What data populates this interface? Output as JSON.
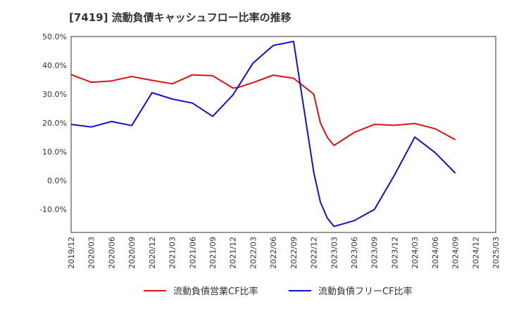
{
  "chart_data": {
    "type": "line",
    "title": "[7419]  流動負債キャッシュフロー比率の推移",
    "xlabel": "",
    "ylabel": "",
    "ylim": [
      -18,
      50
    ],
    "y_ticks": [
      "50.0%",
      "40.0%",
      "30.0%",
      "20.0%",
      "10.0%",
      "0.0%",
      "-10.0%"
    ],
    "y_tick_values": [
      50,
      40,
      30,
      20,
      10,
      0,
      -10
    ],
    "categories": [
      "2019/12",
      "2020/03",
      "2020/06",
      "2020/09",
      "2020/12",
      "2021/03",
      "2021/06",
      "2021/09",
      "2021/12",
      "2022/03",
      "2022/06",
      "2022/09",
      "2022/12",
      "2023/03",
      "2023/06",
      "2023/09",
      "2023/12",
      "2024/03",
      "2024/06",
      "2024/09",
      "2024/12",
      "2025/03"
    ],
    "grid": true,
    "legend_position": "bottom",
    "series": [
      {
        "name": "流動負債営業CF比率",
        "color": "#dd1111",
        "points": [
          [
            0,
            36.8
          ],
          [
            1,
            34.1
          ],
          [
            2,
            34.6
          ],
          [
            3,
            36.1
          ],
          [
            4,
            34.8
          ],
          [
            5,
            33.6
          ],
          [
            6,
            36.7
          ],
          [
            7,
            36.4
          ],
          [
            8,
            32.1
          ],
          [
            8.25,
            32.3
          ],
          [
            9,
            34.0
          ],
          [
            10,
            36.6
          ],
          [
            11,
            35.5
          ],
          [
            12,
            30.0
          ],
          [
            12.33,
            20.0
          ],
          [
            12.67,
            15.0
          ],
          [
            13,
            12.2
          ],
          [
            14,
            16.7
          ],
          [
            15,
            19.5
          ],
          [
            16,
            19.2
          ],
          [
            17,
            19.8
          ],
          [
            18,
            18.0
          ],
          [
            19,
            14.2
          ]
        ]
      },
      {
        "name": "流動負債フリーCF比率",
        "color": "#1111cc",
        "points": [
          [
            0,
            19.5
          ],
          [
            1,
            18.6
          ],
          [
            2,
            20.5
          ],
          [
            3,
            19.1
          ],
          [
            4,
            30.5
          ],
          [
            5,
            28.3
          ],
          [
            6,
            26.9
          ],
          [
            7,
            22.3
          ],
          [
            8,
            29.7
          ],
          [
            9,
            40.8
          ],
          [
            10,
            46.9
          ],
          [
            11,
            48.3
          ],
          [
            12,
            2.8
          ],
          [
            12.33,
            -7.5
          ],
          [
            12.67,
            -13.0
          ],
          [
            13,
            -15.9
          ],
          [
            14,
            -13.9
          ],
          [
            15,
            -10.0
          ],
          [
            16,
            2.0
          ],
          [
            17,
            15.1
          ],
          [
            18,
            9.7
          ],
          [
            19,
            2.6
          ]
        ]
      }
    ]
  }
}
